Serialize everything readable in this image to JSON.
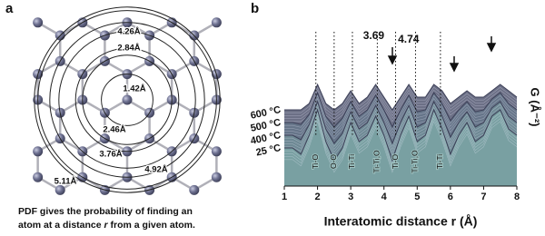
{
  "panel_a": {
    "letter": "a",
    "distances": [
      {
        "value": 1.42,
        "label": "1.42Å"
      },
      {
        "value": 2.46,
        "label": "2.46Å"
      },
      {
        "value": 2.84,
        "label": "2.84Å"
      },
      {
        "value": 3.76,
        "label": "3.76Å"
      },
      {
        "value": 4.26,
        "label": "4.26Å"
      },
      {
        "value": 4.92,
        "label": "4.92Å"
      },
      {
        "value": 5.11,
        "label": "5.11Å"
      }
    ],
    "caption": {
      "line1": "PDF gives the probability of finding an",
      "line2_start": "atom at a distance ",
      "variable": "r",
      "line2_end": " from a given atom."
    }
  },
  "chart_data": {
    "type": "waterfall",
    "letter": "b",
    "xlabel": "Interatomic distance r (Å)",
    "ylabel": "G (Å⁻²)",
    "xlim": [
      1,
      8
    ],
    "xticks": [
      1,
      2,
      3,
      4,
      5,
      6,
      7,
      8
    ],
    "ylim": [
      -4,
      10
    ],
    "peak_labels": [
      {
        "x": 3.69,
        "label": "3.69"
      },
      {
        "x": 4.74,
        "label": "4.74"
      }
    ],
    "pair_labels": [
      {
        "x": 1.95,
        "label": "Ti-O"
      },
      {
        "x": 2.5,
        "label": "O-O"
      },
      {
        "x": 3.05,
        "label": "Ti-Ti"
      },
      {
        "x": 3.8,
        "label": "Ti-Ti,O"
      },
      {
        "x": 4.35,
        "label": "Ti-O"
      },
      {
        "x": 4.95,
        "label": "Ti-Ti,O"
      },
      {
        "x": 5.7,
        "label": "Ti-Ti"
      }
    ],
    "x": [
      1,
      1.25,
      1.5,
      1.75,
      2,
      2.25,
      2.5,
      2.75,
      3,
      3.25,
      3.5,
      3.75,
      4,
      4.25,
      4.5,
      4.75,
      5,
      5.25,
      5.5,
      5.75,
      6,
      6.25,
      6.5,
      6.75,
      7,
      7.25,
      7.5,
      7.75,
      8
    ],
    "series": [
      {
        "name": "600 °C",
        "color": "#5c6079",
        "values": [
          0,
          0,
          0,
          1,
          4,
          1,
          0,
          1,
          3,
          1,
          2,
          4,
          2,
          0,
          2,
          4,
          2,
          2,
          4,
          3,
          1,
          2,
          3,
          2,
          2,
          3,
          4,
          3,
          2
        ]
      },
      {
        "name": "500 °C",
        "color": "#66758a",
        "values": [
          0,
          0,
          -0.3,
          1.3,
          4.7,
          1,
          -0.7,
          0.7,
          3.3,
          1,
          2,
          4.3,
          2,
          -0.7,
          2,
          4.3,
          1.7,
          2,
          4.7,
          3,
          0.3,
          2,
          3.3,
          1.7,
          2,
          3.7,
          4.7,
          3,
          2
        ]
      },
      {
        "name": "400 °C",
        "color": "#6f8c96",
        "values": [
          0,
          0,
          -0.7,
          1.7,
          5.3,
          1,
          -1.3,
          0.3,
          3.7,
          1,
          2,
          4.7,
          2,
          -1.3,
          2,
          4.7,
          1.3,
          2,
          5.3,
          3,
          -0.3,
          2,
          3.7,
          1.3,
          2,
          4.3,
          5.3,
          3,
          2
        ]
      },
      {
        "name": "25 °C",
        "color": "#7aa3a3",
        "values": [
          0,
          0,
          -1,
          2,
          6,
          1,
          -2,
          0,
          4,
          1,
          2,
          5,
          2,
          -2,
          2,
          5,
          1,
          2,
          6,
          3,
          -1,
          2,
          4,
          1,
          2,
          5,
          6,
          3,
          2
        ]
      }
    ]
  }
}
